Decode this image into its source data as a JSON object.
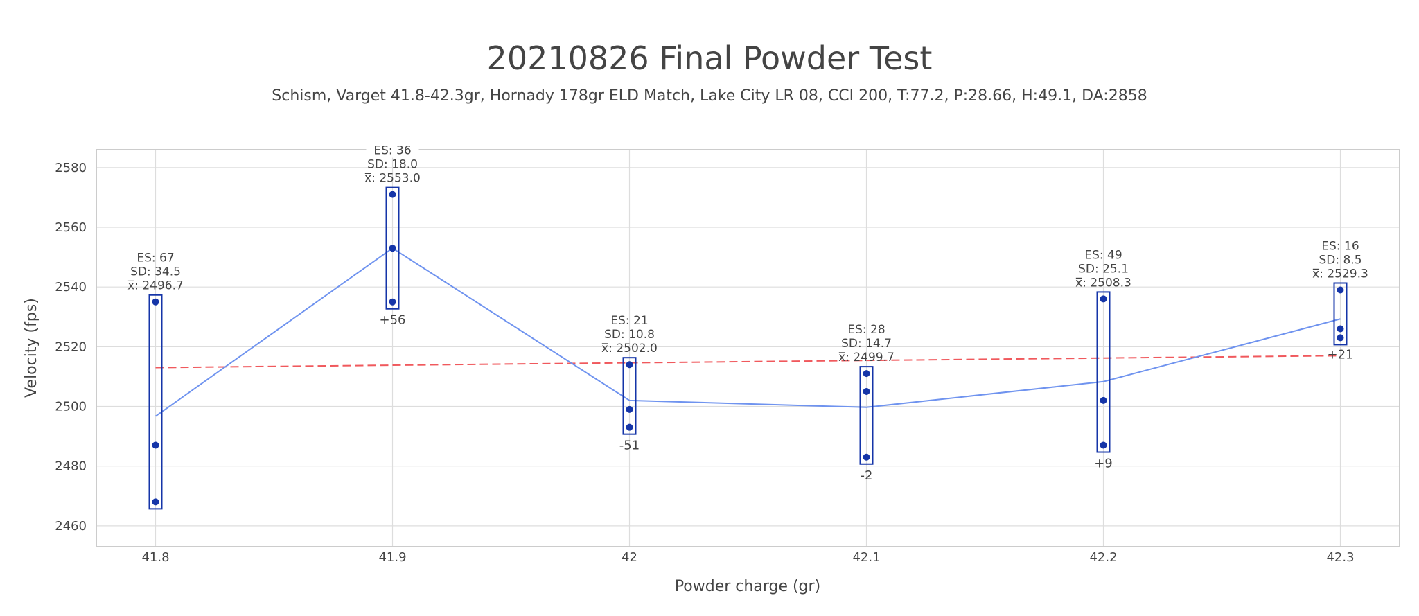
{
  "chart_data": {
    "type": "scatter",
    "title": "20210826 Final Powder Test",
    "subtitle": "Schism, Varget 41.8-42.3gr, Hornady 178gr ELD Match, Lake City LR 08, CCI 200, T:77.2, P:28.66, H:49.1, DA:2858",
    "xlabel": "Powder charge (gr)",
    "ylabel": "Velocity (fps)",
    "xlim": [
      41.775,
      42.325
    ],
    "ylim": [
      2453,
      2586
    ],
    "x_ticks": [
      "41.8",
      "41.9",
      "42",
      "42.1",
      "42.2",
      "42.3"
    ],
    "y_ticks": [
      2460,
      2480,
      2500,
      2520,
      2540,
      2560,
      2580
    ],
    "grid": true,
    "colors": {
      "points": "#1535a8",
      "box": "#1535a8",
      "mean_line": "#6f93ef",
      "trend_line": "#f0595d",
      "text": "#444444",
      "grid": "#dddddd"
    },
    "groups": [
      {
        "x": 41.8,
        "x_label": "41.8",
        "velocities": [
          2535,
          2487,
          2468
        ],
        "es": "ES: 67",
        "sd": "SD: 34.5",
        "mean": 2496.7,
        "mean_label": "x̅: 2496.7",
        "delta": "",
        "delta_pos": "none"
      },
      {
        "x": 41.9,
        "x_label": "41.9",
        "velocities": [
          2571,
          2553,
          2535
        ],
        "es": "ES: 36",
        "sd": "SD: 18.0",
        "mean": 2553.0,
        "mean_label": "x̅: 2553.0",
        "delta": "+56",
        "delta_pos": "below"
      },
      {
        "x": 42.0,
        "x_label": "42",
        "velocities": [
          2514,
          2499,
          2493
        ],
        "es": "ES: 21",
        "sd": "SD: 10.8",
        "mean": 2502.0,
        "mean_label": "x̅: 2502.0",
        "delta": "-51",
        "delta_pos": "below"
      },
      {
        "x": 42.1,
        "x_label": "42.1",
        "velocities": [
          2511,
          2505,
          2483
        ],
        "es": "ES: 28",
        "sd": "SD: 14.7",
        "mean": 2499.7,
        "mean_label": "x̅: 2499.7",
        "delta": "-2",
        "delta_pos": "below"
      },
      {
        "x": 42.2,
        "x_label": "42.2",
        "velocities": [
          2536,
          2502,
          2487
        ],
        "es": "ES: 49",
        "sd": "SD: 25.1",
        "mean": 2508.3,
        "mean_label": "x̅: 2508.3",
        "delta": "+9",
        "delta_pos": "below"
      },
      {
        "x": 42.3,
        "x_label": "42.3",
        "velocities": [
          2539,
          2526,
          2523
        ],
        "es": "ES: 16",
        "sd": "SD: 8.5",
        "mean": 2529.3,
        "mean_label": "x̅: 2529.3",
        "delta": "+21",
        "delta_pos": "right"
      }
    ],
    "trend": {
      "x": [
        41.8,
        42.3
      ],
      "y": [
        2513,
        2517
      ]
    }
  }
}
